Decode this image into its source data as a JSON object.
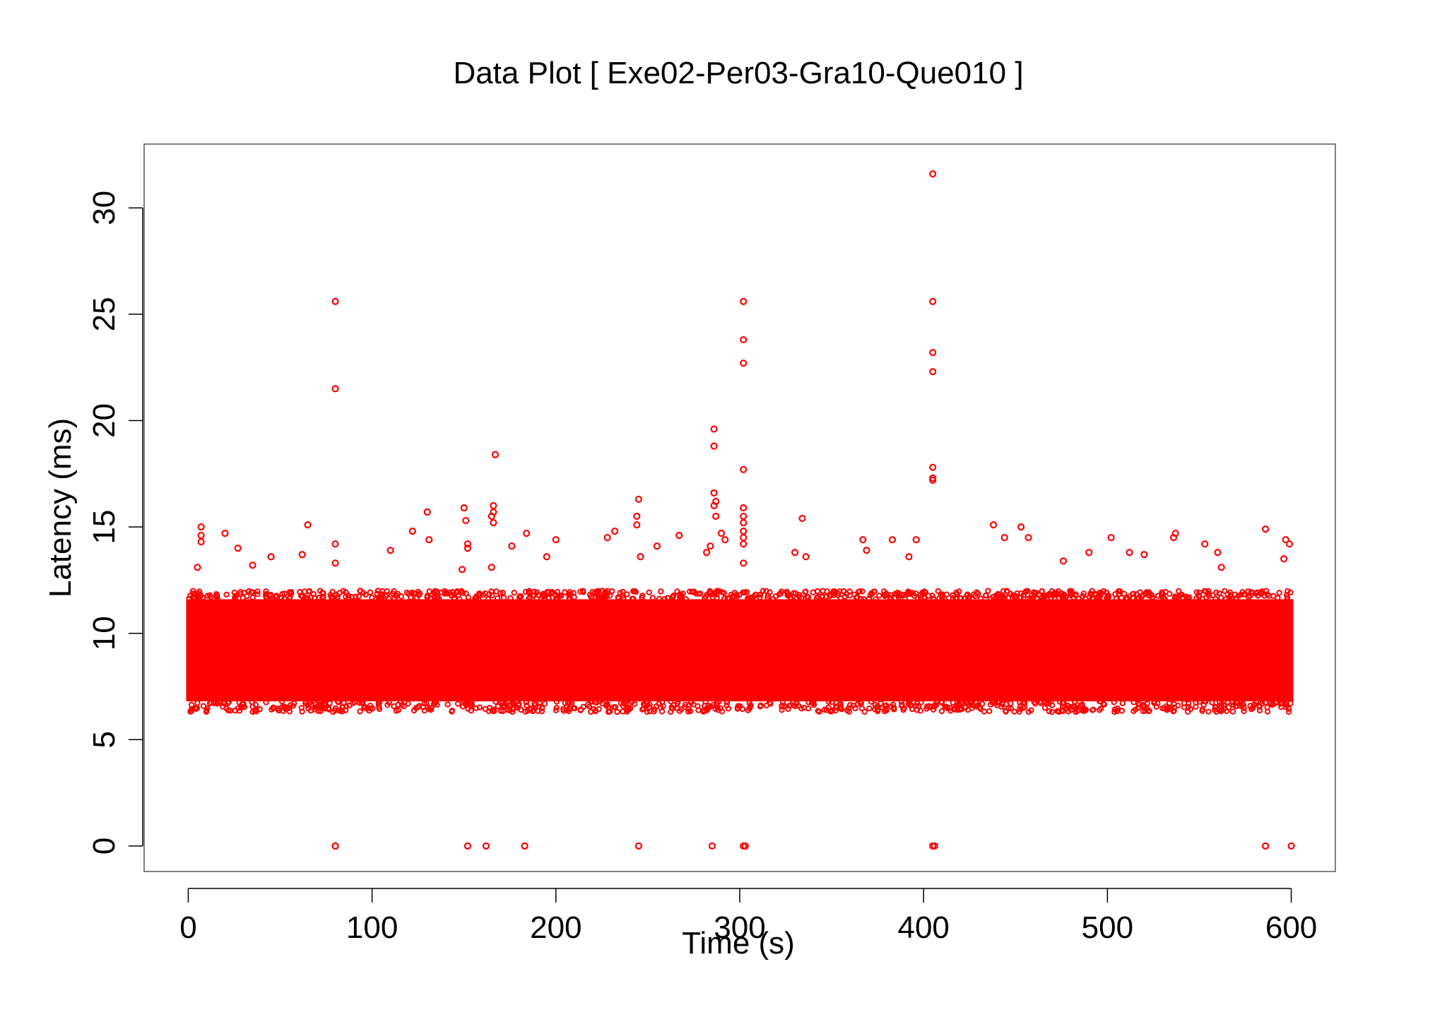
{
  "chart_data": {
    "type": "scatter",
    "title": "Data Plot [ Exe02-Per03-Gra10-Que010 ]",
    "xlabel": "Time (s)",
    "ylabel": "Latency (ms)",
    "xlim": [
      -24,
      624
    ],
    "ylim": [
      -1.2,
      33
    ],
    "xticks": [
      0,
      100,
      200,
      300,
      400,
      500,
      600
    ],
    "yticks": [
      0,
      5,
      10,
      15,
      20,
      25,
      30
    ],
    "grid": false,
    "legend": "none",
    "marker_color": "#ff0000",
    "dense_band": {
      "x_range": [
        0,
        600
      ],
      "y_range": [
        6.3,
        12.0
      ],
      "y_core": [
        6.8,
        11.6
      ]
    },
    "series": [
      {
        "values": [
          [
            80,
            25.6
          ],
          [
            80,
            21.5
          ],
          [
            80,
            14.2
          ],
          [
            80,
            13.3
          ],
          [
            7,
            15.0
          ],
          [
            7,
            14.6
          ],
          [
            7,
            14.3
          ],
          [
            20,
            14.7
          ],
          [
            27,
            14.0
          ],
          [
            5,
            13.1
          ],
          [
            35,
            13.2
          ],
          [
            65,
            15.1
          ],
          [
            62,
            13.7
          ],
          [
            45,
            13.6
          ],
          [
            130,
            15.7
          ],
          [
            131,
            14.4
          ],
          [
            122,
            14.8
          ],
          [
            110,
            13.9
          ],
          [
            150,
            15.9
          ],
          [
            151,
            15.3
          ],
          [
            152,
            14.2
          ],
          [
            152,
            14.0
          ],
          [
            149,
            13.0
          ],
          [
            167,
            18.4
          ],
          [
            166,
            16.0
          ],
          [
            166,
            15.7
          ],
          [
            165,
            15.5
          ],
          [
            166,
            15.2
          ],
          [
            165,
            13.1
          ],
          [
            176,
            14.1
          ],
          [
            184,
            14.7
          ],
          [
            200,
            14.4
          ],
          [
            195,
            13.6
          ],
          [
            232,
            14.8
          ],
          [
            228,
            14.5
          ],
          [
            245,
            16.3
          ],
          [
            244,
            15.5
          ],
          [
            244,
            15.1
          ],
          [
            246,
            13.6
          ],
          [
            267,
            14.6
          ],
          [
            255,
            14.1
          ],
          [
            286,
            19.6
          ],
          [
            286,
            18.8
          ],
          [
            286,
            16.6
          ],
          [
            287,
            16.2
          ],
          [
            286,
            16.0
          ],
          [
            287,
            15.5
          ],
          [
            290,
            14.7
          ],
          [
            292,
            14.4
          ],
          [
            284,
            14.1
          ],
          [
            282,
            13.8
          ],
          [
            302,
            25.6
          ],
          [
            302,
            23.8
          ],
          [
            302,
            22.7
          ],
          [
            302,
            17.7
          ],
          [
            302,
            15.9
          ],
          [
            302,
            15.5
          ],
          [
            302,
            15.2
          ],
          [
            302,
            14.8
          ],
          [
            302,
            14.5
          ],
          [
            302,
            14.2
          ],
          [
            302,
            13.3
          ],
          [
            334,
            15.4
          ],
          [
            336,
            13.6
          ],
          [
            330,
            13.8
          ],
          [
            405,
            31.6
          ],
          [
            405,
            25.6
          ],
          [
            405,
            23.2
          ],
          [
            405,
            22.3
          ],
          [
            405,
            17.8
          ],
          [
            405,
            17.3
          ],
          [
            405,
            17.2
          ],
          [
            367,
            14.4
          ],
          [
            369,
            13.9
          ],
          [
            383,
            14.4
          ],
          [
            396,
            14.4
          ],
          [
            392,
            13.6
          ],
          [
            438,
            15.1
          ],
          [
            444,
            14.5
          ],
          [
            453,
            15.0
          ],
          [
            457,
            14.5
          ],
          [
            476,
            13.4
          ],
          [
            490,
            13.8
          ],
          [
            502,
            14.5
          ],
          [
            512,
            13.8
          ],
          [
            520,
            13.7
          ],
          [
            537,
            14.7
          ],
          [
            536,
            14.5
          ],
          [
            553,
            14.2
          ],
          [
            560,
            13.8
          ],
          [
            562,
            13.1
          ],
          [
            586,
            14.9
          ],
          [
            597,
            14.4
          ],
          [
            599,
            14.2
          ],
          [
            596,
            13.5
          ],
          [
            80,
            0
          ],
          [
            80,
            0
          ],
          [
            152,
            0
          ],
          [
            162,
            0
          ],
          [
            183,
            0
          ],
          [
            245,
            0
          ],
          [
            285,
            0
          ],
          [
            302,
            0
          ],
          [
            303,
            0
          ],
          [
            405,
            0
          ],
          [
            406,
            0
          ],
          [
            586,
            0
          ],
          [
            600,
            0
          ]
        ]
      }
    ]
  }
}
